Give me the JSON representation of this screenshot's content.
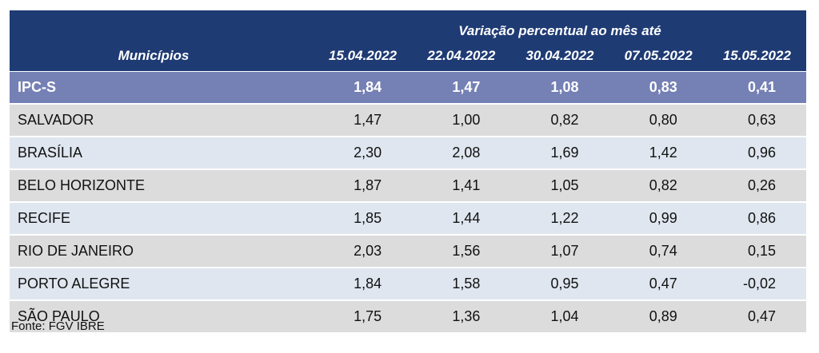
{
  "header": {
    "title": "Variação percentual ao mês até",
    "column_label": "Municípios",
    "dates": [
      "15.04.2022",
      "22.04.2022",
      "30.04.2022",
      "07.05.2022",
      "15.05.2022"
    ]
  },
  "summary_row": {
    "name": "IPC-S",
    "values": [
      "1,84",
      "1,47",
      "1,08",
      "0,83",
      "0,41"
    ]
  },
  "rows": [
    {
      "name": "SALVADOR",
      "values": [
        "1,47",
        "1,00",
        "0,82",
        "0,80",
        "0,63"
      ]
    },
    {
      "name": "BRASÍLIA",
      "values": [
        "2,30",
        "2,08",
        "1,69",
        "1,42",
        "0,96"
      ]
    },
    {
      "name": "BELO HORIZONTE",
      "values": [
        "1,87",
        "1,41",
        "1,05",
        "0,82",
        "0,26"
      ]
    },
    {
      "name": "RECIFE",
      "values": [
        "1,85",
        "1,44",
        "1,22",
        "0,99",
        "0,86"
      ]
    },
    {
      "name": "RIO DE JANEIRO",
      "values": [
        "2,03",
        "1,56",
        "1,07",
        "0,74",
        "0,15"
      ]
    },
    {
      "name": "PORTO ALEGRE",
      "values": [
        "1,84",
        "1,58",
        "0,95",
        "0,47",
        "-0,02"
      ]
    },
    {
      "name": "SÃO PAULO",
      "values": [
        "1,75",
        "1,36",
        "1,04",
        "0,89",
        "0,47"
      ]
    }
  ],
  "source": "Fonte: FGV IBRE",
  "colors": {
    "header_bg": "#1f3b74",
    "summary_bg": "#7580b4",
    "row_gray": "#dcdcdc",
    "row_light": "#dfe6ef"
  }
}
